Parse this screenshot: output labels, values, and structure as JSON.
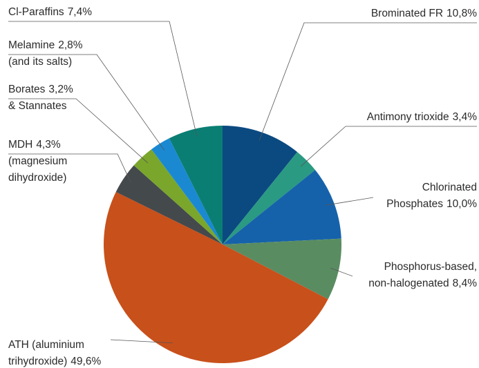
{
  "chart_data": {
    "type": "pie",
    "categories": [
      [
        "Brominated FR"
      ],
      [
        "Antimony trioxide"
      ],
      [
        "Chlorinated",
        "Phosphates"
      ],
      [
        "Phosphorus-based,",
        "non-halogenated"
      ],
      [
        "ATH (aluminium",
        "trihydroxide)"
      ],
      [
        "MDH",
        "(magnesium",
        "dihydroxide)"
      ],
      [
        "Borates",
        "& Stannates"
      ],
      [
        "Melamine",
        "(and its salts)"
      ],
      [
        "Cl-Paraffins"
      ]
    ],
    "values": [
      10.8,
      3.4,
      10.0,
      8.4,
      49.6,
      4.3,
      3.2,
      2.8,
      7.4
    ],
    "value_labels": [
      "10,8%",
      "3,4%",
      "10,0%",
      "8,4%",
      "49,6%",
      "4,3%",
      "3,2%",
      "2,8%",
      "7,4%"
    ],
    "colors": [
      "#0b4a80",
      "#2a9a82",
      "#1562aa",
      "#5a8c62",
      "#c8501a",
      "#44494c",
      "#7aa62c",
      "#1a89d2",
      "#0a7e72"
    ]
  }
}
